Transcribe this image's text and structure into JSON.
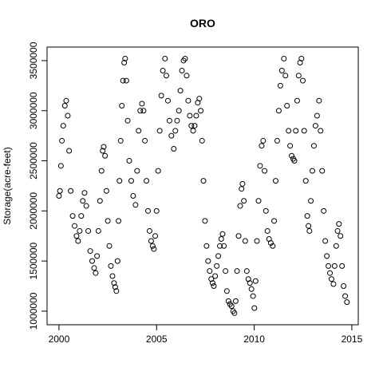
{
  "chart_data": {
    "type": "scatter",
    "title": "ORO",
    "y_label": "Storage(acre-feet)",
    "xlim": [
      1999.39,
      2015.33
    ],
    "ylim": [
      864000,
      3635000
    ],
    "xticks": [
      2000,
      2005,
      2010,
      2015
    ],
    "yticks": [
      1000000,
      1500000,
      2000000,
      2500000,
      3000000,
      3500000
    ],
    "color": "#000000",
    "x": [
      2000.0,
      2000.05,
      2000.1,
      2000.15,
      2000.22,
      2000.3,
      2000.37,
      2000.45,
      2000.52,
      2000.6,
      2000.7,
      2000.8,
      2000.9,
      2000.98,
      2001.06,
      2001.14,
      2001.22,
      2001.31,
      2001.4,
      2001.5,
      2001.6,
      2001.7,
      2001.8,
      2001.88,
      2001.95,
      2002.02,
      2002.1,
      2002.18,
      2002.24,
      2002.29,
      2002.36,
      2002.43,
      2002.5,
      2002.58,
      2002.66,
      2002.74,
      2002.82,
      2002.88,
      2002.94,
      2003.0,
      2003.05,
      2003.1,
      2003.16,
      2003.22,
      2003.28,
      2003.34,
      2003.39,
      2003.45,
      2003.52,
      2003.6,
      2003.7,
      2003.8,
      2003.92,
      2004.0,
      2004.08,
      2004.16,
      2004.25,
      2004.33,
      2004.4,
      2004.48,
      2004.56,
      2004.64,
      2004.72,
      2004.8,
      2004.86,
      2004.93,
      2005.0,
      2005.08,
      2005.16,
      2005.24,
      2005.32,
      2005.43,
      2005.5,
      2005.58,
      2005.66,
      2005.76,
      2005.88,
      2005.96,
      2006.05,
      2006.14,
      2006.22,
      2006.3,
      2006.38,
      2006.46,
      2006.54,
      2006.62,
      2006.7,
      2006.78,
      2006.87,
      2006.95,
      2007.03,
      2007.11,
      2007.19,
      2007.26,
      2007.33,
      2007.4,
      2007.48,
      2007.56,
      2007.64,
      2007.72,
      2007.8,
      2007.87,
      2007.93,
      2008.0,
      2008.08,
      2008.16,
      2008.24,
      2008.31,
      2008.38,
      2008.45,
      2008.53,
      2008.6,
      2008.68,
      2008.76,
      2008.84,
      2008.92,
      2008.99,
      2009.05,
      2009.12,
      2009.2,
      2009.28,
      2009.35,
      2009.4,
      2009.47,
      2009.54,
      2009.62,
      2009.7,
      2009.78,
      2009.86,
      2009.94,
      2010.01,
      2010.07,
      2010.14,
      2010.22,
      2010.3,
      2010.38,
      2010.46,
      2010.53,
      2010.6,
      2010.68,
      2010.76,
      2010.85,
      2010.95,
      2011.02,
      2011.1,
      2011.18,
      2011.26,
      2011.34,
      2011.42,
      2011.52,
      2011.6,
      2011.68,
      2011.76,
      2011.84,
      2011.92,
      2012.0,
      2012.06,
      2012.13,
      2012.2,
      2012.28,
      2012.35,
      2012.42,
      2012.49,
      2012.56,
      2012.64,
      2012.72,
      2012.78,
      2012.83,
      2012.9,
      2012.98,
      2013.06,
      2013.14,
      2013.22,
      2013.32,
      2013.4,
      2013.48,
      2013.56,
      2013.64,
      2013.72,
      2013.8,
      2013.88,
      2013.96,
      2014.06,
      2014.12,
      2014.2,
      2014.27,
      2014.34,
      2014.42,
      2014.5,
      2014.58,
      2014.66,
      2014.75
    ],
    "values": [
      2150000,
      2200000,
      2450000,
      2700000,
      2850000,
      3050000,
      3100000,
      2950000,
      2600000,
      2200000,
      1950000,
      1850000,
      1750000,
      1700000,
      1800000,
      1950000,
      2100000,
      2180000,
      2050000,
      1800000,
      1600000,
      1500000,
      1430000,
      1380000,
      1550000,
      1800000,
      2100000,
      2400000,
      2600000,
      2640000,
      2550000,
      2200000,
      1900000,
      1650000,
      1450000,
      1350000,
      1280000,
      1240000,
      1200000,
      1500000,
      1900000,
      2300000,
      2700000,
      3050000,
      3300000,
      3480000,
      3520000,
      3300000,
      2900000,
      2500000,
      2300000,
      2150000,
      2060000,
      2400000,
      2800000,
      3000000,
      3070000,
      3000000,
      2700000,
      2300000,
      2000000,
      1800000,
      1700000,
      1650000,
      1620000,
      1750000,
      2000000,
      2400000,
      2800000,
      3150000,
      3400000,
      3520000,
      3350000,
      3100000,
      2900000,
      2750000,
      2620000,
      2800000,
      2900000,
      3000000,
      3200000,
      3400000,
      3500000,
      3520000,
      3350000,
      3100000,
      2950000,
      2850000,
      2800000,
      2850000,
      2950000,
      3080000,
      3120000,
      3000000,
      2700000,
      2300000,
      1900000,
      1650000,
      1500000,
      1400000,
      1320000,
      1280000,
      1250000,
      1350000,
      1450000,
      1550000,
      1650000,
      1720000,
      1770000,
      1650000,
      1400000,
      1200000,
      1100000,
      1070000,
      1050000,
      1000000,
      980000,
      1100000,
      1400000,
      1750000,
      2050000,
      2220000,
      2270000,
      2100000,
      1700000,
      1400000,
      1320000,
      1280000,
      1220000,
      1150000,
      1030000,
      1300000,
      1700000,
      2100000,
      2450000,
      2650000,
      2700000,
      2400000,
      2000000,
      1800000,
      1720000,
      1680000,
      1650000,
      1900000,
      2300000,
      2700000,
      3000000,
      3250000,
      3400000,
      3520000,
      3350000,
      3050000,
      2800000,
      2650000,
      2550000,
      2520000,
      2500000,
      2800000,
      3100000,
      3350000,
      3480000,
      3520000,
      3300000,
      2800000,
      2300000,
      1950000,
      1850000,
      1800000,
      2100000,
      2400000,
      2650000,
      2850000,
      2950000,
      3100000,
      2800000,
      2400000,
      2000000,
      1700000,
      1550000,
      1450000,
      1380000,
      1320000,
      1270000,
      1450000,
      1650000,
      1800000,
      1870000,
      1750000,
      1450000,
      1250000,
      1150000,
      1090000
    ]
  }
}
